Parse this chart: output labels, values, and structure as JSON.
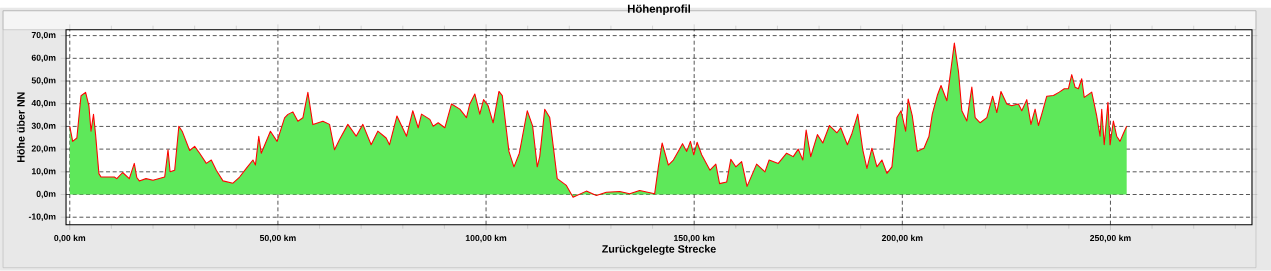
{
  "chart_data": {
    "type": "area",
    "title": "Höhenprofil",
    "xlabel": "Zurückgelegte Strecke",
    "ylabel": "Höhe über NN",
    "xlim": [
      -0.9,
      284
    ],
    "ylim": [
      -13.3,
      72.6
    ],
    "xticks": [
      {
        "value": 0,
        "label": "0,00 km"
      },
      {
        "value": 10,
        "label": null
      },
      {
        "value": 20,
        "label": null
      },
      {
        "value": 30,
        "label": null
      },
      {
        "value": 40,
        "label": null
      },
      {
        "value": 50,
        "label": "50,00 km"
      },
      {
        "value": 60,
        "label": null
      },
      {
        "value": 70,
        "label": null
      },
      {
        "value": 80,
        "label": null
      },
      {
        "value": 90,
        "label": null
      },
      {
        "value": 100,
        "label": "100,00 km"
      },
      {
        "value": 110,
        "label": null
      },
      {
        "value": 120,
        "label": null
      },
      {
        "value": 130,
        "label": null
      },
      {
        "value": 140,
        "label": null
      },
      {
        "value": 150,
        "label": "150,00 km"
      },
      {
        "value": 160,
        "label": null
      },
      {
        "value": 170,
        "label": null
      },
      {
        "value": 180,
        "label": null
      },
      {
        "value": 190,
        "label": null
      },
      {
        "value": 200,
        "label": "200,00 km"
      },
      {
        "value": 210,
        "label": null
      },
      {
        "value": 220,
        "label": null
      },
      {
        "value": 230,
        "label": null
      },
      {
        "value": 240,
        "label": null
      },
      {
        "value": 250,
        "label": "250,00 km"
      },
      {
        "value": 260,
        "label": null
      },
      {
        "value": 270,
        "label": null
      },
      {
        "value": 280,
        "label": null
      }
    ],
    "yticks": [
      {
        "value": -10,
        "label": "-10,0m"
      },
      {
        "value": 0,
        "label": "0,0m"
      },
      {
        "value": 10,
        "label": "10,0m"
      },
      {
        "value": 20,
        "label": "20,0m"
      },
      {
        "value": 30,
        "label": "30,0m"
      },
      {
        "value": 40,
        "label": "40,0m"
      },
      {
        "value": 50,
        "label": "50,0m"
      },
      {
        "value": 60,
        "label": "60,0m"
      },
      {
        "value": 70,
        "label": "70,0m"
      }
    ],
    "grid": true,
    "series": [
      {
        "color": "#5ee85a",
        "x": [
          0,
          0.7,
          1.7,
          2.7,
          3.8,
          4.6,
          5.1,
          5.7,
          6.2,
          7.0,
          7.5,
          10.7,
          11.3,
          12.7,
          14.3,
          15.5,
          16.1,
          16.7,
          18.3,
          20,
          22.8,
          23.6,
          24.1,
          25.2,
          26.2,
          27,
          28.8,
          30,
          31.2,
          32.8,
          34,
          35.2,
          36.8,
          39.2,
          40.8,
          42.4,
          44,
          44.6,
          45.4,
          46,
          48.2,
          49.8,
          51.6,
          52.4,
          53.6,
          54.8,
          56,
          57.2,
          58.4,
          60.8,
          62.4,
          63.6,
          64.8,
          66.8,
          68.8,
          70.4,
          72.4,
          74.0,
          76.0,
          76.8,
          78.6,
          80.9,
          82.4,
          83.7,
          84.5,
          86.5,
          87.3,
          88.5,
          90.1,
          91.7,
          93.7,
          95.3,
          96.1,
          97.3,
          98.5,
          99.4,
          100.5,
          101.7,
          103.1,
          103.9,
          105.5,
          106.7,
          108,
          109.9,
          111.2,
          112.3,
          112.9,
          114.1,
          115.3,
          117.1,
          119.3,
          120.9,
          124.1,
          126.5,
          128.9,
          132.1,
          134.5,
          136.9,
          140.5,
          141.4,
          142.3,
          143.8,
          145,
          146.4,
          147.2,
          148.2,
          149.1,
          149.9,
          150.7,
          151.8,
          153.8,
          155.2,
          156.1,
          157.8,
          158.8,
          160,
          161.4,
          162.7,
          165,
          167,
          168,
          170.2,
          172.2,
          173.8,
          175,
          176.1,
          176.9,
          178,
          179.6,
          180.9,
          182.5,
          184.3,
          185.2,
          186.8,
          187.9,
          189.3,
          190.5,
          191.5,
          192.7,
          193.9,
          195.1,
          196.3,
          197.5,
          198.7,
          199.7,
          200.8,
          201.4,
          202.4,
          203.6,
          205.2,
          206.4,
          207.2,
          208.4,
          209.3,
          210.7,
          212.5,
          213.5,
          214.3,
          215.5,
          216.7,
          217.5,
          218.7,
          220.3,
          221.7,
          222.7,
          223.7,
          225.1,
          226.3,
          227.9,
          228.7,
          229.9,
          230.9,
          231.9,
          232.7,
          233.5,
          234.7,
          236.3,
          237.7,
          238.9,
          239.9,
          240.7,
          241.5,
          242.3,
          243.1,
          243.7,
          245.5,
          246.7,
          247.5,
          247.9,
          248.5,
          249.4,
          249.9,
          250.7,
          251.5,
          252.3,
          253.1,
          253.9
        ],
        "values": [
          30,
          23.4,
          24.9,
          43.5,
          45,
          39,
          27.9,
          35.3,
          26.4,
          9.2,
          7.7,
          7.7,
          7,
          9.7,
          7,
          13.7,
          7.5,
          6,
          7,
          6.3,
          7.7,
          19.7,
          10,
          10.7,
          30.1,
          27.9,
          19.4,
          21.2,
          18.2,
          13.7,
          15.2,
          10.7,
          6,
          5,
          7.7,
          11.5,
          15.2,
          13,
          25.6,
          18.2,
          27.9,
          23.4,
          33.8,
          35.3,
          36.4,
          32.3,
          33.8,
          45,
          30.8,
          32.3,
          30.9,
          19.7,
          24.2,
          30.9,
          25.7,
          30.9,
          21.9,
          27.9,
          24.9,
          21.9,
          34.6,
          25.7,
          36.9,
          29.4,
          35.4,
          33.1,
          30.1,
          31.6,
          29.4,
          39.9,
          37.6,
          33.9,
          39.9,
          44.3,
          35.4,
          41.8,
          39.1,
          31.6,
          45.4,
          43.6,
          19,
          12.2,
          18.2,
          36.9,
          30.1,
          12.2,
          16.7,
          37.6,
          33.9,
          7,
          4,
          -1.2,
          1.5,
          -0.4,
          1,
          1.3,
          0.3,
          1.8,
          0.3,
          12.2,
          22.7,
          13,
          15.2,
          19.7,
          22.4,
          19,
          23.4,
          17.5,
          23,
          17.5,
          10.7,
          13.4,
          4.8,
          5.5,
          15.5,
          12.2,
          14.5,
          3.6,
          13.4,
          10,
          15.2,
          13.7,
          18.2,
          16.7,
          20,
          15.2,
          28.4,
          16.7,
          26.4,
          22.7,
          30.4,
          27.2,
          29.4,
          21.9,
          26.9,
          35.4,
          19.7,
          11.5,
          20.4,
          12.2,
          15.2,
          9.3,
          12.2,
          33.9,
          36.9,
          27.9,
          42.1,
          34.6,
          19,
          20.4,
          25.7,
          35.4,
          43.6,
          48,
          41.3,
          66.7,
          54,
          36.9,
          32.4,
          47.3,
          33.9,
          31.6,
          33.9,
          43.3,
          36.1,
          45.4,
          39.9,
          39.1,
          39.9,
          36.9,
          41.8,
          30.9,
          37.6,
          30.4,
          35.4,
          43.3,
          43.6,
          45.1,
          46.6,
          46.6,
          52.8,
          47.3,
          46.6,
          51,
          42.8,
          45.1,
          34.6,
          25.7,
          37.6,
          21.9,
          40.6,
          21.9,
          32.4,
          25.7,
          23.4,
          26.9,
          30.1
        ]
      }
    ]
  }
}
